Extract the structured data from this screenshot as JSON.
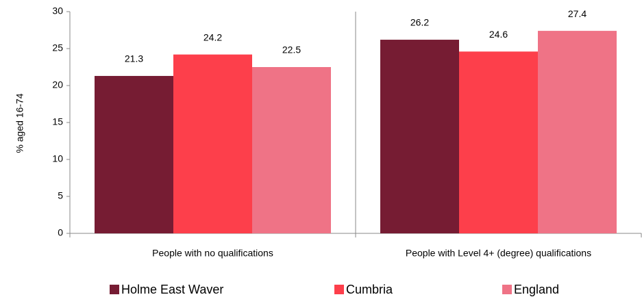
{
  "chart_data": {
    "type": "bar",
    "y_label": "% aged 16-74",
    "categories": [
      "People with no qualifications",
      "People with Level 4+ (degree) qualifications"
    ],
    "series": [
      {
        "name": "Holme East Waver",
        "color": "#761c33",
        "values": [
          21.3,
          26.2
        ]
      },
      {
        "name": "Cumbria",
        "color": "#fd3f4b",
        "values": [
          24.2,
          24.6
        ]
      },
      {
        "name": "England",
        "color": "#ef7386",
        "values": [
          22.5,
          27.4
        ]
      }
    ],
    "ylim": [
      0,
      30
    ],
    "yticks": [
      0,
      5,
      10,
      15,
      20,
      25,
      30
    ],
    "grid": false,
    "legend": "bottom"
  }
}
